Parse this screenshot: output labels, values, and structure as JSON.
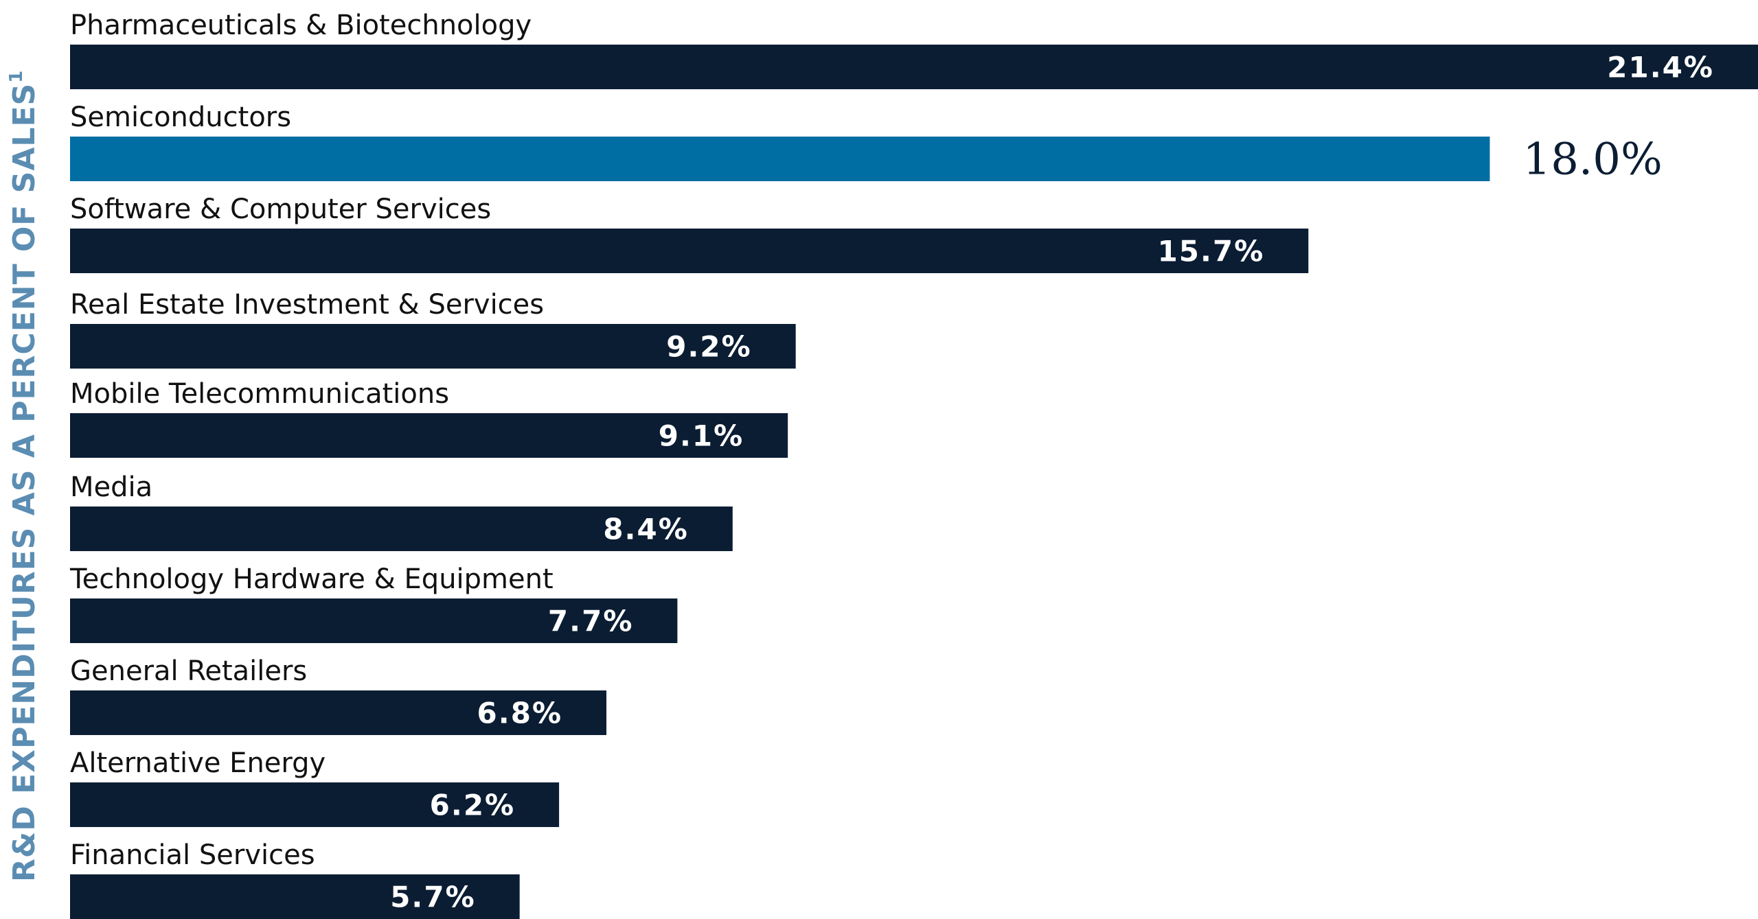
{
  "chart_data": {
    "type": "bar",
    "orientation": "horizontal",
    "ylabel": "R&D EXPENDITURES AS A PERCENT OF SALES",
    "ylabel_footnote": "1",
    "categories": [
      "Pharmaceuticals & Biotechnology",
      "Semiconductors",
      "Software & Computer Services",
      "Real Estate Investment & Services",
      "Mobile Telecommunications",
      "Media",
      "Technology Hardware & Equipment",
      "General Retailers",
      "Alternative Energy",
      "Financial Services"
    ],
    "values": [
      21.4,
      18.0,
      15.7,
      9.2,
      9.1,
      8.4,
      7.7,
      6.8,
      6.2,
      5.7
    ],
    "value_labels": [
      "21.4%",
      "18.0%",
      "15.7%",
      "9.2%",
      "9.1%",
      "8.4%",
      "7.7%",
      "6.8%",
      "6.2%",
      "5.7%"
    ],
    "highlighted_category": "Semiconductors",
    "xlim": [
      0,
      21.4
    ],
    "grid": false,
    "legend": "none"
  },
  "colors": {
    "bar": "#0b1d33",
    "highlight": "#006ea3",
    "axis_label": "#5b8db3",
    "category_text": "#111111",
    "value_text_inside": "#ffffff",
    "value_text_highlight": "#0b1d33"
  }
}
